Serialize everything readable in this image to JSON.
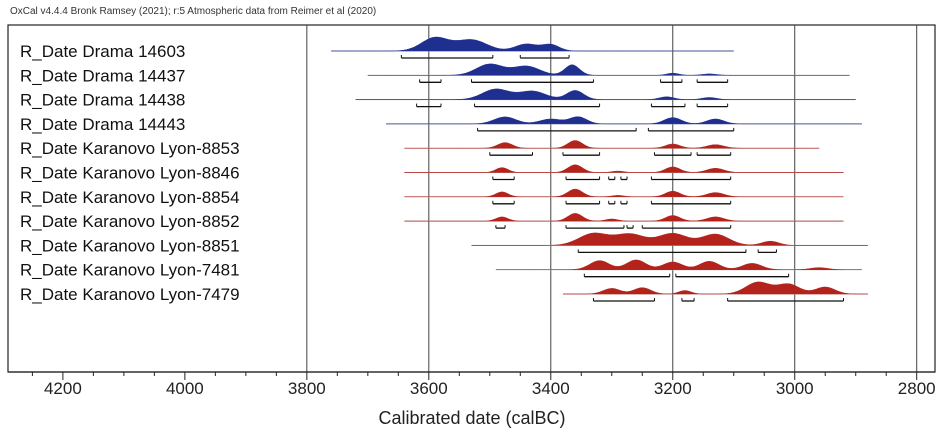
{
  "chart_data": {
    "type": "ridgeline",
    "header": "OxCal v4.4.4 Bronk Ramsey (2021); r:5 Atmospheric data from Reimer et al (2020)",
    "xlabel": "Calibrated date (calBC)",
    "xlim": [
      4290,
      2770
    ],
    "x_reversed": true,
    "xticks": [
      4200,
      4000,
      3800,
      3600,
      3400,
      3200,
      3000,
      2800
    ],
    "vertical_lines": [
      3800,
      3600,
      3400,
      3200,
      3000,
      2800
    ],
    "colors": {
      "blue": "#1f2f8f",
      "red": "#b3221b",
      "axis": "#222222",
      "line": "#bdbdbd"
    },
    "series": [
      {
        "label": "R_Date Drama 14603",
        "color": "blue",
        "line": [
          3760,
          3100
        ],
        "peaks": [
          [
            3590,
            0.95,
            22
          ],
          [
            3530,
            0.8,
            25
          ],
          [
            3440,
            0.5,
            18
          ],
          [
            3400,
            0.45,
            14
          ]
        ],
        "ranges95": [
          [
            3645,
            3495
          ],
          [
            3450,
            3370
          ]
        ]
      },
      {
        "label": "R_Date Drama 14437",
        "color": "blue",
        "line": [
          3700,
          2910
        ],
        "peaks": [
          [
            3500,
            0.8,
            22
          ],
          [
            3440,
            0.65,
            22
          ],
          [
            3365,
            0.75,
            12
          ],
          [
            3200,
            0.15,
            10
          ],
          [
            3140,
            0.1,
            12
          ]
        ],
        "ranges95": [
          [
            3615,
            3580
          ],
          [
            3530,
            3330
          ],
          [
            3220,
            3185
          ],
          [
            3160,
            3110
          ]
        ]
      },
      {
        "label": "R_Date Drama 14438",
        "color": "blue",
        "line": [
          3720,
          2900
        ],
        "peaks": [
          [
            3490,
            0.75,
            22
          ],
          [
            3430,
            0.6,
            22
          ],
          [
            3360,
            0.65,
            14
          ],
          [
            3210,
            0.2,
            12
          ],
          [
            3140,
            0.15,
            12
          ]
        ],
        "ranges95": [
          [
            3620,
            3580
          ],
          [
            3525,
            3320
          ],
          [
            3235,
            3180
          ],
          [
            3160,
            3110
          ]
        ]
      },
      {
        "label": "R_Date Drama 14443",
        "color": "blue",
        "line": [
          3670,
          2890
        ],
        "peaks": [
          [
            3475,
            0.5,
            18
          ],
          [
            3400,
            0.35,
            18
          ],
          [
            3355,
            0.5,
            14
          ],
          [
            3200,
            0.45,
            14
          ],
          [
            3130,
            0.35,
            14
          ]
        ],
        "ranges95": [
          [
            3520,
            3260
          ],
          [
            3240,
            3100
          ]
        ]
      },
      {
        "label": "R_Date Karanovo Lyon-8853",
        "color": "red",
        "line": [
          3640,
          2960
        ],
        "peaks": [
          [
            3475,
            0.4,
            12
          ],
          [
            3360,
            0.55,
            12
          ],
          [
            3200,
            0.3,
            12
          ],
          [
            3130,
            0.25,
            14
          ]
        ],
        "ranges95": [
          [
            3500,
            3430
          ],
          [
            3380,
            3320
          ],
          [
            3230,
            3170
          ],
          [
            3160,
            3105
          ]
        ]
      },
      {
        "label": "R_Date Karanovo Lyon-8846",
        "color": "red",
        "line": [
          3640,
          2920
        ],
        "peaks": [
          [
            3480,
            0.35,
            10
          ],
          [
            3360,
            0.55,
            12
          ],
          [
            3290,
            0.1,
            10
          ],
          [
            3200,
            0.4,
            12
          ],
          [
            3130,
            0.3,
            14
          ]
        ],
        "ranges95": [
          [
            3495,
            3460
          ],
          [
            3375,
            3320
          ],
          [
            3305,
            3295
          ],
          [
            3285,
            3275
          ],
          [
            3235,
            3105
          ]
        ]
      },
      {
        "label": "R_Date Karanovo Lyon-8854",
        "color": "red",
        "line": [
          3640,
          2920
        ],
        "peaks": [
          [
            3480,
            0.35,
            10
          ],
          [
            3360,
            0.55,
            12
          ],
          [
            3290,
            0.1,
            10
          ],
          [
            3200,
            0.4,
            12
          ],
          [
            3130,
            0.3,
            14
          ]
        ],
        "ranges95": [
          [
            3495,
            3460
          ],
          [
            3375,
            3320
          ],
          [
            3305,
            3295
          ],
          [
            3285,
            3275
          ],
          [
            3235,
            3105
          ]
        ]
      },
      {
        "label": "R_Date Karanovo Lyon-8852",
        "color": "red",
        "line": [
          3640,
          2920
        ],
        "peaks": [
          [
            3480,
            0.3,
            10
          ],
          [
            3360,
            0.55,
            12
          ],
          [
            3300,
            0.15,
            10
          ],
          [
            3200,
            0.4,
            12
          ],
          [
            3130,
            0.3,
            14
          ]
        ],
        "ranges95": [
          [
            3490,
            3475
          ],
          [
            3375,
            3280
          ],
          [
            3275,
            3265
          ],
          [
            3250,
            3105
          ]
        ]
      },
      {
        "label": "R_Date Karanovo Lyon-8851",
        "color": "red",
        "line": [
          3530,
          2880
        ],
        "peaks": [
          [
            3330,
            0.85,
            24
          ],
          [
            3270,
            0.8,
            24
          ],
          [
            3200,
            0.85,
            24
          ],
          [
            3130,
            0.8,
            22
          ],
          [
            3040,
            0.3,
            14
          ]
        ],
        "ranges95": [
          [
            3355,
            3080
          ],
          [
            3060,
            3030
          ]
        ]
      },
      {
        "label": "R_Date Karanovo Lyon-7481",
        "color": "red",
        "line": [
          3490,
          2890
        ],
        "peaks": [
          [
            3320,
            0.65,
            16
          ],
          [
            3260,
            0.7,
            16
          ],
          [
            3200,
            0.55,
            16
          ],
          [
            3140,
            0.6,
            16
          ],
          [
            3070,
            0.45,
            16
          ],
          [
            2960,
            0.15,
            14
          ]
        ],
        "ranges95": [
          [
            3345,
            3205
          ],
          [
            3195,
            3010
          ]
        ]
      },
      {
        "label": "R_Date Karanovo Lyon-7479",
        "color": "red",
        "line": [
          3380,
          2880
        ],
        "peaks": [
          [
            3300,
            0.4,
            14
          ],
          [
            3250,
            0.45,
            14
          ],
          [
            3180,
            0.25,
            10
          ],
          [
            3060,
            0.85,
            20
          ],
          [
            3010,
            0.7,
            18
          ],
          [
            2950,
            0.5,
            16
          ]
        ],
        "ranges95": [
          [
            3330,
            3230
          ],
          [
            3185,
            3165
          ],
          [
            3110,
            2920
          ]
        ]
      }
    ]
  }
}
